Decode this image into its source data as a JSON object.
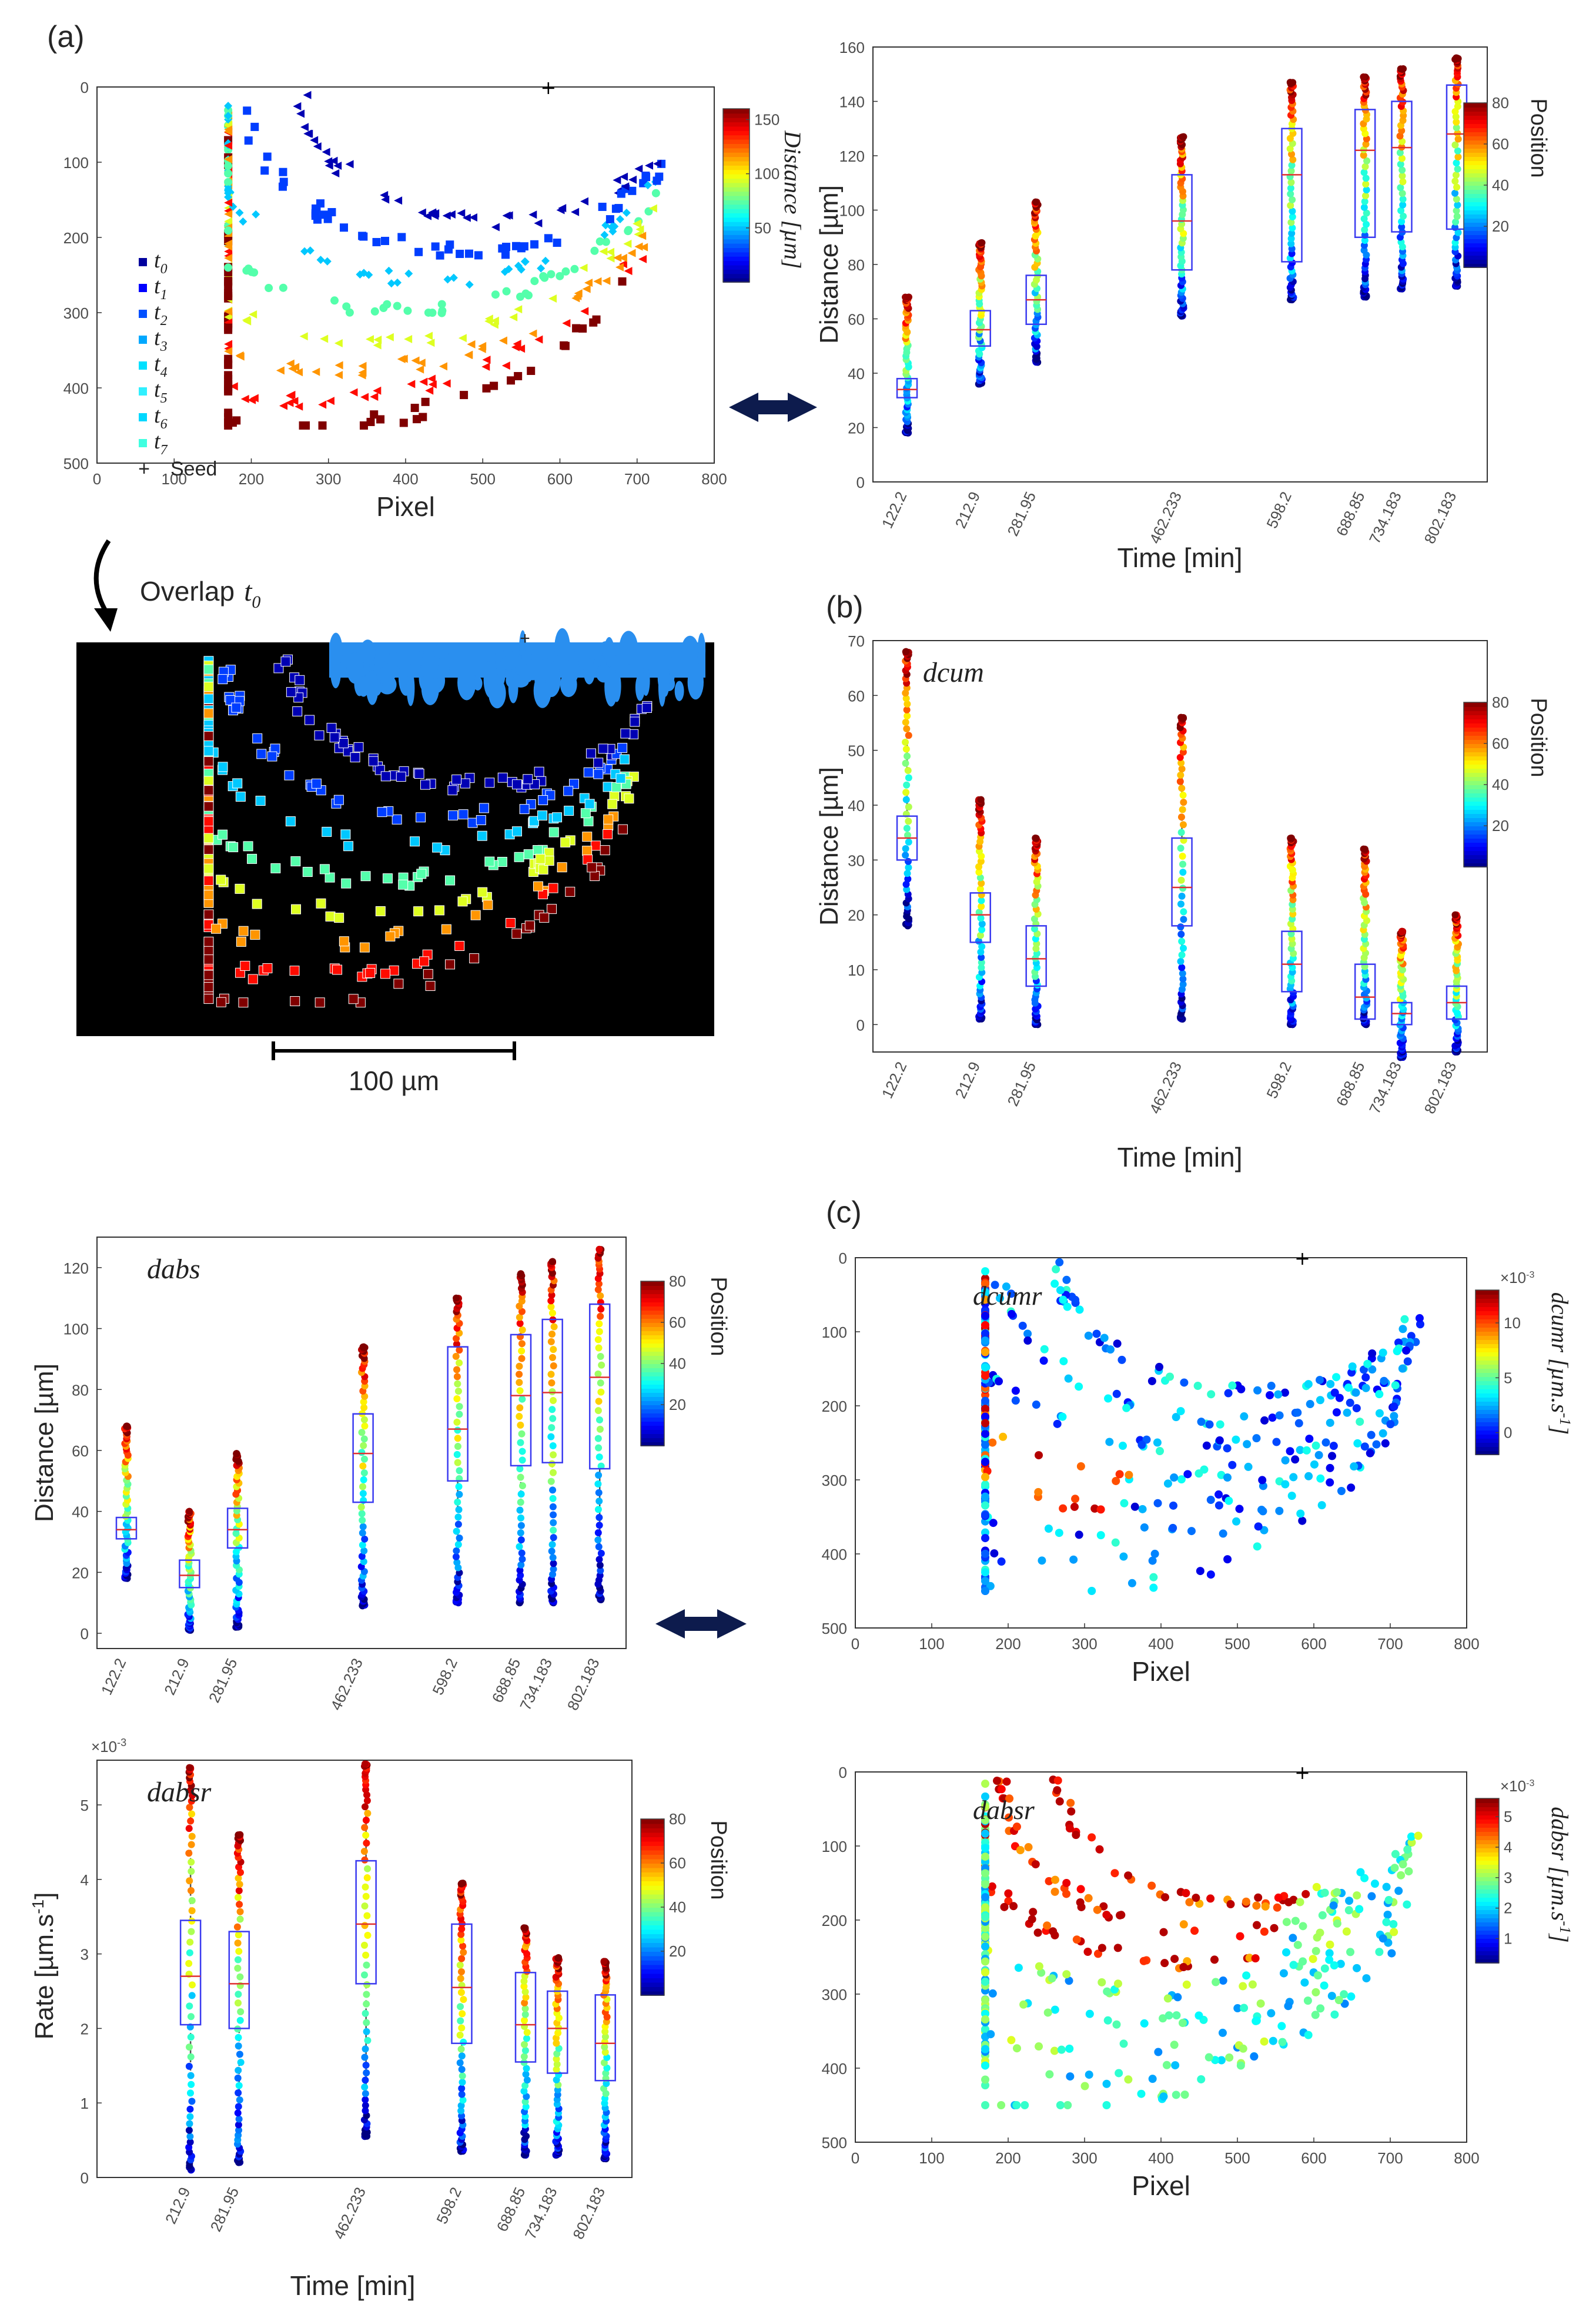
{
  "panel_labels": {
    "a": "(a)",
    "b": "(b)",
    "c": "(c)"
  },
  "overlap": {
    "label": "Overlap",
    "t0": "t",
    "t0_sub": "0",
    "scale_bar": "100 µm"
  },
  "colors": {
    "box": "#3b3bf0",
    "arrow_fill": "#0d1b4d",
    "background_map": "#000000",
    "seed_region": "#2a8fef"
  },
  "chart_data": [
    {
      "id": "a_scatter",
      "type": "scatter",
      "title": "",
      "xlabel": "Pixel",
      "ylabel": "",
      "xlim": [
        0,
        800
      ],
      "ylim": [
        0,
        500
      ],
      "y_reversed": true,
      "xticks": [
        "0",
        "100",
        "200",
        "300",
        "400",
        "500",
        "600",
        "700",
        "800"
      ],
      "yticks": [
        "0",
        "100",
        "200",
        "300",
        "400",
        "500"
      ],
      "colorbar": {
        "label": "Distance [µm]",
        "ticks": [
          "50",
          "100",
          "150"
        ],
        "range": [
          0,
          160
        ]
      },
      "legend": [
        {
          "label": "t",
          "sub": "0",
          "marker": "triangle-left"
        },
        {
          "label": "t",
          "sub": "1",
          "marker": "square"
        },
        {
          "label": "t",
          "sub": "2",
          "marker": "diamond"
        },
        {
          "label": "t",
          "sub": "3",
          "marker": "circle"
        },
        {
          "label": "t",
          "sub": "4",
          "marker": "triangle-left"
        },
        {
          "label": "t",
          "sub": "5",
          "marker": "triangle-right"
        },
        {
          "label": "t",
          "sub": "6",
          "marker": "triangle-down"
        },
        {
          "label": "t",
          "sub": "7",
          "marker": "square"
        },
        {
          "label": "Seed",
          "sub": "",
          "marker": "plus"
        }
      ],
      "seed": [
        585,
        0
      ]
    },
    {
      "id": "a_box",
      "type": "box",
      "xlabel": "Time [min]",
      "ylabel": "Distance [µm]",
      "ylim": [
        0,
        160
      ],
      "yticks": [
        "0",
        "20",
        "40",
        "60",
        "80",
        "100",
        "120",
        "140",
        "160"
      ],
      "x": [
        122.2,
        212.9,
        281.95,
        462.233,
        598.2,
        688.85,
        734.183,
        802.183
      ],
      "xticklabels": [
        "122.2",
        "212.9",
        "281.95",
        "462.233",
        "598.2",
        "688.85",
        "734.183",
        "802.183"
      ],
      "boxes": [
        {
          "q1": 31,
          "median": 34,
          "q3": 38,
          "min": 18,
          "max": 68
        },
        {
          "q1": 50,
          "median": 56,
          "q3": 63,
          "min": 36,
          "max": 88
        },
        {
          "q1": 58,
          "median": 67,
          "q3": 76,
          "min": 44,
          "max": 103
        },
        {
          "q1": 78,
          "median": 96,
          "q3": 113,
          "min": 61,
          "max": 127
        },
        {
          "q1": 81,
          "median": 113,
          "q3": 130,
          "min": 67,
          "max": 147
        },
        {
          "q1": 90,
          "median": 122,
          "q3": 137,
          "min": 68,
          "max": 149
        },
        {
          "q1": 92,
          "median": 123,
          "q3": 140,
          "min": 71,
          "max": 152
        },
        {
          "q1": 93,
          "median": 128,
          "q3": 146,
          "min": 72,
          "max": 156
        }
      ],
      "colorbar": {
        "label": "Position",
        "ticks": [
          "20",
          "40",
          "60",
          "80"
        ],
        "range": [
          0,
          80
        ]
      }
    },
    {
      "id": "b_dcum",
      "type": "box",
      "annotation": "dcum",
      "xlabel": "Time [min]",
      "ylabel": "Distance [µm]",
      "ylim": [
        -5,
        70
      ],
      "yticks": [
        "0",
        "10",
        "20",
        "30",
        "40",
        "50",
        "60",
        "70"
      ],
      "x": [
        122.2,
        212.9,
        281.95,
        462.233,
        598.2,
        688.85,
        734.183,
        802.183
      ],
      "xticklabels": [
        "122.2",
        "212.9",
        "281.95",
        "462.233",
        "598.2",
        "688.85",
        "734.183",
        "802.183"
      ],
      "boxes": [
        {
          "q1": 30,
          "median": 34,
          "q3": 38,
          "min": 18,
          "max": 68
        },
        {
          "q1": 15,
          "median": 20,
          "q3": 24,
          "min": 1,
          "max": 41
        },
        {
          "q1": 7,
          "median": 12,
          "q3": 18,
          "min": 0,
          "max": 34
        },
        {
          "q1": 18,
          "median": 25,
          "q3": 34,
          "min": 1,
          "max": 56
        },
        {
          "q1": 6,
          "median": 11,
          "q3": 17,
          "min": 0,
          "max": 34
        },
        {
          "q1": 1,
          "median": 5,
          "q3": 11,
          "min": 0,
          "max": 32
        },
        {
          "q1": 0,
          "median": 2,
          "q3": 4,
          "min": -6,
          "max": 17
        },
        {
          "q1": 1,
          "median": 4,
          "q3": 7,
          "min": -5,
          "max": 20
        }
      ],
      "colorbar": {
        "label": "Position",
        "ticks": [
          "20",
          "40",
          "60",
          "80"
        ],
        "range": [
          0,
          80
        ]
      }
    },
    {
      "id": "dabs",
      "type": "box",
      "annotation": "dabs",
      "xlabel": "",
      "ylabel": "Distance [µm]",
      "ylim": [
        -5,
        130
      ],
      "yticks": [
        "0",
        "20",
        "40",
        "60",
        "80",
        "100",
        "120"
      ],
      "x": [
        122.2,
        212.9,
        281.95,
        462.233,
        598.2,
        688.85,
        734.183,
        802.183
      ],
      "xticklabels": [
        "122.2",
        "212.9",
        "281.95",
        "462.233",
        "598.2",
        "688.85",
        "734.183",
        "802.183"
      ],
      "boxes": [
        {
          "q1": 31,
          "median": 34,
          "q3": 38,
          "min": 18,
          "max": 68
        },
        {
          "q1": 15,
          "median": 19,
          "q3": 24,
          "min": 1,
          "max": 40
        },
        {
          "q1": 28,
          "median": 34,
          "q3": 41,
          "min": 2,
          "max": 59
        },
        {
          "q1": 43,
          "median": 59,
          "q3": 72,
          "min": 9,
          "max": 94
        },
        {
          "q1": 50,
          "median": 67,
          "q3": 94,
          "min": 10,
          "max": 110
        },
        {
          "q1": 55,
          "median": 78,
          "q3": 98,
          "min": 10,
          "max": 118
        },
        {
          "q1": 56,
          "median": 79,
          "q3": 103,
          "min": 10,
          "max": 122
        },
        {
          "q1": 54,
          "median": 84,
          "q3": 108,
          "min": 11,
          "max": 126
        }
      ],
      "colorbar": {
        "label": "Position",
        "ticks": [
          "20",
          "40",
          "60",
          "80"
        ],
        "range": [
          0,
          80
        ]
      }
    },
    {
      "id": "dabsr",
      "type": "box",
      "annotation": "dabsr",
      "xlabel": "Time [min]",
      "ylabel": "Rate [µm.s",
      "ylabel_sup": "-1",
      "ylabel_end": "]",
      "exponent": "×10",
      "exponent_sup": "-3",
      "ylim": [
        0,
        5.6
      ],
      "yticks": [
        "0",
        "1",
        "2",
        "3",
        "4",
        "5"
      ],
      "x": [
        212.9,
        281.95,
        462.233,
        598.2,
        688.85,
        734.183,
        802.183
      ],
      "xticklabels": [
        "212.9",
        "281.95",
        "462.233",
        "598.2",
        "688.85",
        "734.183",
        "802.183"
      ],
      "boxes": [
        {
          "q1": 2.05,
          "median": 2.7,
          "q3": 3.45,
          "min": 0.1,
          "max": 5.5
        },
        {
          "q1": 2.0,
          "median": 2.6,
          "q3": 3.3,
          "min": 0.2,
          "max": 4.6
        },
        {
          "q1": 2.6,
          "median": 3.4,
          "q3": 4.25,
          "min": 0.55,
          "max": 5.55
        },
        {
          "q1": 1.8,
          "median": 2.55,
          "q3": 3.4,
          "min": 0.35,
          "max": 3.95
        },
        {
          "q1": 1.55,
          "median": 2.05,
          "q3": 2.75,
          "min": 0.3,
          "max": 3.35
        },
        {
          "q1": 1.4,
          "median": 2.0,
          "q3": 2.5,
          "min": 0.3,
          "max": 2.95
        },
        {
          "q1": 1.3,
          "median": 1.8,
          "q3": 2.45,
          "min": 0.25,
          "max": 2.9
        }
      ],
      "colorbar": {
        "label": "Position",
        "ticks": [
          "20",
          "40",
          "60",
          "80"
        ],
        "range": [
          0,
          80
        ]
      }
    },
    {
      "id": "c_dcumr",
      "type": "scatter",
      "annotation": "dcumr",
      "xlabel": "Pixel",
      "xlim": [
        0,
        800
      ],
      "ylim": [
        0,
        500
      ],
      "y_reversed": true,
      "xticks": [
        "0",
        "100",
        "200",
        "300",
        "400",
        "500",
        "600",
        "700",
        "800"
      ],
      "yticks": [
        "0",
        "100",
        "200",
        "300",
        "400",
        "500"
      ],
      "colorbar": {
        "label": "dcumr [µm.s",
        "label_sup": "-1",
        "label_end": "]",
        "exponent": "×10",
        "exponent_sup": "-3",
        "ticks": [
          "0",
          "5",
          "10"
        ],
        "range": [
          -2,
          13
        ]
      },
      "seed": [
        585,
        0
      ]
    },
    {
      "id": "c_dabsr",
      "type": "scatter",
      "annotation": "dabsr",
      "xlabel": "Pixel",
      "xlim": [
        0,
        800
      ],
      "ylim": [
        0,
        500
      ],
      "y_reversed": true,
      "xticks": [
        "0",
        "100",
        "200",
        "300",
        "400",
        "500",
        "600",
        "700",
        "800"
      ],
      "yticks": [
        "0",
        "100",
        "200",
        "300",
        "400",
        "500"
      ],
      "colorbar": {
        "label": "dabsr [µm.s",
        "label_sup": "-1",
        "label_end": "]",
        "exponent": "×10",
        "exponent_sup": "-3",
        "ticks": [
          "1",
          "2",
          "3",
          "4",
          "5"
        ],
        "range": [
          0.2,
          5.6
        ]
      },
      "seed": [
        585,
        0
      ]
    }
  ]
}
